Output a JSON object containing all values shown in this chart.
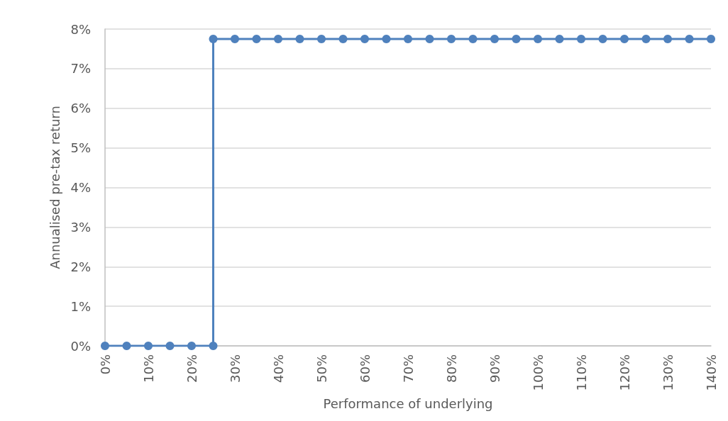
{
  "chart_data": {
    "type": "line",
    "xlabel": "Performance of underlying",
    "ylabel": "Annualised pre-tax return",
    "x": [
      0,
      5,
      10,
      15,
      20,
      25,
      25,
      30,
      35,
      40,
      45,
      50,
      55,
      60,
      65,
      70,
      75,
      80,
      85,
      90,
      95,
      100,
      105,
      110,
      115,
      120,
      125,
      130,
      135,
      140
    ],
    "series": [
      {
        "color": "#4f81bd",
        "values": [
          0,
          0,
          0,
          0,
          0,
          0,
          7.75,
          7.75,
          7.75,
          7.75,
          7.75,
          7.75,
          7.75,
          7.75,
          7.75,
          7.75,
          7.75,
          7.75,
          7.75,
          7.75,
          7.75,
          7.75,
          7.75,
          7.75,
          7.75,
          7.75,
          7.75,
          7.75,
          7.75,
          7.75
        ]
      }
    ],
    "xlim": [
      0,
      140
    ],
    "xticks": [
      {
        "value": 0,
        "label": "0%"
      },
      {
        "value": 10,
        "label": "10%"
      },
      {
        "value": 20,
        "label": "20%"
      },
      {
        "value": 30,
        "label": "30%"
      },
      {
        "value": 40,
        "label": "40%"
      },
      {
        "value": 50,
        "label": "50%"
      },
      {
        "value": 60,
        "label": "60%"
      },
      {
        "value": 70,
        "label": "70%"
      },
      {
        "value": 80,
        "label": "80%"
      },
      {
        "value": 90,
        "label": "90%"
      },
      {
        "value": 100,
        "label": "100%"
      },
      {
        "value": 110,
        "label": "110%"
      },
      {
        "value": 120,
        "label": "120%"
      },
      {
        "value": 130,
        "label": "130%"
      },
      {
        "value": 140,
        "label": "140%"
      }
    ],
    "ylim": [
      0,
      8
    ],
    "yticks": [
      {
        "value": 0,
        "label": "0%"
      },
      {
        "value": 1,
        "label": "1%"
      },
      {
        "value": 2,
        "label": "2%"
      },
      {
        "value": 3,
        "label": "3%"
      },
      {
        "value": 4,
        "label": "4%"
      },
      {
        "value": 5,
        "label": "5%"
      },
      {
        "value": 6,
        "label": "6%"
      },
      {
        "value": 7,
        "label": "7%"
      },
      {
        "value": 8,
        "label": "8%"
      }
    ],
    "grid": "y",
    "marker": "circle",
    "line_style": "solid"
  }
}
